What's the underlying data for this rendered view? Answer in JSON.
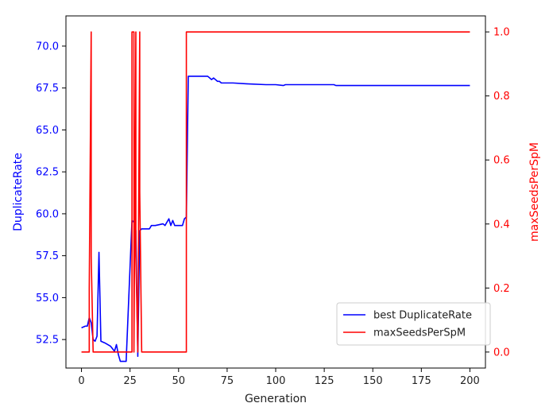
{
  "chart_data": {
    "type": "line",
    "xlabel": "Generation",
    "ylabel_left": "DuplicateRate",
    "ylabel_right": "maxSeedsPerSpM",
    "xlim": [
      -8,
      208
    ],
    "ylim_left": [
      50.8,
      71.8
    ],
    "ylim_right": [
      -0.05,
      1.05
    ],
    "x_ticks": [
      0,
      25,
      50,
      75,
      100,
      125,
      150,
      175,
      200
    ],
    "y_left_ticks": [
      52.5,
      55.0,
      57.5,
      60.0,
      62.5,
      65.0,
      67.5,
      70.0
    ],
    "y_right_ticks": [
      0.0,
      0.2,
      0.4,
      0.6,
      0.8,
      1.0
    ],
    "legend": {
      "position": "lower-right"
    },
    "series": [
      {
        "name": "best DuplicateRate",
        "axis": "left",
        "color": "#0000ff",
        "x": [
          0,
          2,
          3,
          4,
          5,
          6,
          7,
          8,
          9,
          10,
          12,
          15,
          17,
          18,
          19,
          20,
          23,
          26,
          27,
          28,
          29,
          30,
          31,
          35,
          36,
          38,
          42,
          43,
          45,
          46,
          47,
          48,
          52,
          53,
          54,
          55,
          60,
          65,
          67,
          68,
          70,
          71,
          72,
          74,
          78,
          85,
          95,
          100,
          104,
          105,
          108,
          130,
          131,
          140,
          160,
          180,
          200
        ],
        "y": [
          53.2,
          53.3,
          53.3,
          53.8,
          53.5,
          52.5,
          52.4,
          52.7,
          57.7,
          52.4,
          52.3,
          52.1,
          51.8,
          52.2,
          51.6,
          51.2,
          51.2,
          59.6,
          59.5,
          59.0,
          51.5,
          59.0,
          59.1,
          59.1,
          59.3,
          59.3,
          59.4,
          59.3,
          59.7,
          59.3,
          59.6,
          59.3,
          59.3,
          59.7,
          59.8,
          68.2,
          68.2,
          68.2,
          68.0,
          68.1,
          67.9,
          67.9,
          67.8,
          67.8,
          67.8,
          67.75,
          67.7,
          67.7,
          67.65,
          67.7,
          67.7,
          67.7,
          67.65,
          67.65,
          67.65,
          67.65,
          67.65
        ]
      },
      {
        "name": "maxSeedsPerSpM",
        "axis": "right",
        "color": "#ff0000",
        "x": [
          0,
          4,
          4,
          5,
          5,
          6,
          6,
          26,
          26,
          27,
          27,
          28,
          28,
          29,
          29,
          30,
          30,
          31,
          31,
          54,
          54,
          200
        ],
        "y": [
          0,
          0,
          0.2,
          1,
          0.3,
          0,
          0,
          0,
          1,
          1,
          0,
          1,
          0.3,
          0,
          0,
          1,
          0.5,
          0,
          0,
          0,
          1,
          1
        ]
      }
    ]
  }
}
